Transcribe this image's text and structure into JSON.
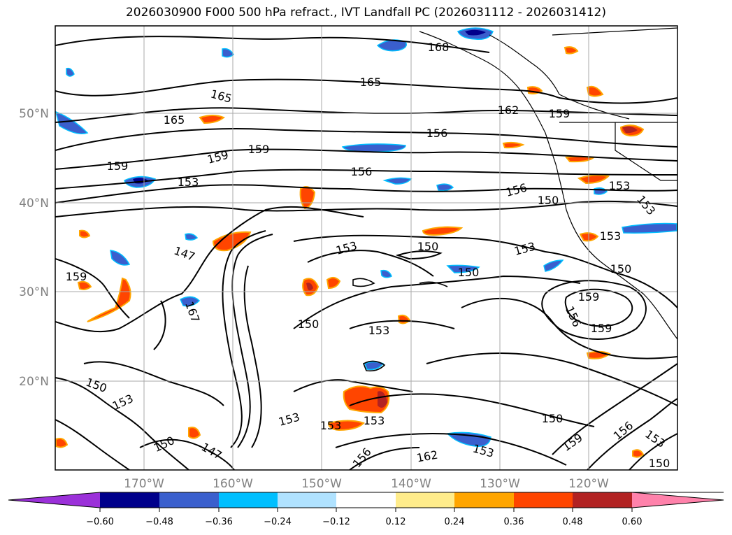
{
  "title": "2026030900 F000 500 hPa refract., IVT Landfall PC (2026031112 - 2026031412)",
  "axes": {
    "lon_ticks": [
      "170°W",
      "160°W",
      "150°W",
      "140°W",
      "130°W",
      "120°W"
    ],
    "lat_ticks": [
      "50°N",
      "40°N",
      "30°N",
      "20°N"
    ]
  },
  "contour_labels": [
    "168",
    "165",
    "165",
    "165",
    "162",
    "159",
    "156",
    "159",
    "159",
    "159",
    "156",
    "153",
    "156",
    "150",
    "153",
    "153",
    "153",
    "150",
    "153",
    "147",
    "167",
    "150",
    "153",
    "150",
    "159",
    "159",
    "156",
    "159",
    "153",
    "150",
    "153",
    "150",
    "153",
    "153",
    "153",
    "150",
    "150",
    "147",
    "156",
    "162",
    "153",
    "159",
    "156",
    "153",
    "150"
  ],
  "colorbar": {
    "ticks": [
      "−0.60",
      "−0.48",
      "−0.36",
      "−0.24",
      "−0.12",
      "0.12",
      "0.24",
      "0.36",
      "0.48",
      "0.60"
    ],
    "colors": [
      "#9b30d9",
      "#00008b",
      "#3a5fcd",
      "#00bfff",
      "#b0e2ff",
      "#ffffff",
      "#ffec8b",
      "#ffa500",
      "#ff4500",
      "#b22222",
      "#ff82ab"
    ]
  }
}
